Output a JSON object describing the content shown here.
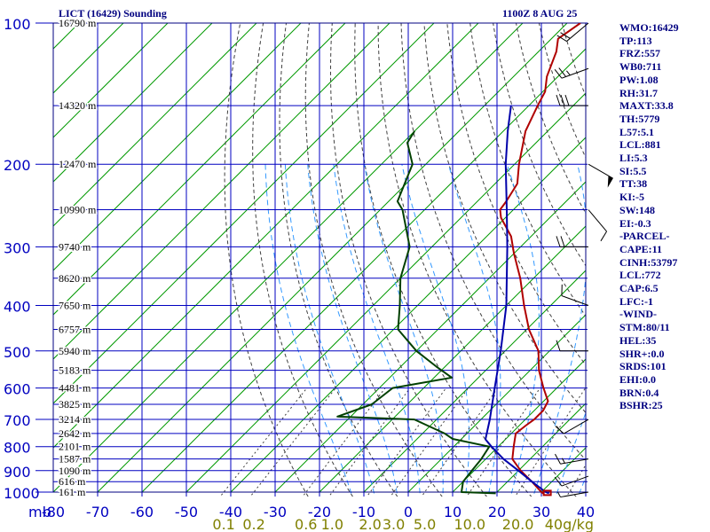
{
  "title_station": "LICT (16429) Sounding",
  "title_time": "1100Z  8 AUG 25",
  "stats": [
    "WMO:16429",
    "TP:113",
    "FRZ:557",
    "WB0:711",
    "PW:1.08",
    "RH:31.7",
    "MAXT:33.8",
    "TH:5779",
    "L57:5.1",
    "LCL:881",
    "LI:5.3",
    "SI:5.5",
    "TT:38",
    "KI:-5",
    "SW:148",
    "EI:-0.3",
    "-PARCEL-",
    "CAPE:11",
    "CINH:53797",
    "LCL:772",
    "CAP:6.5",
    "LFC:-1",
    "-WIND-",
    "STM:80/11",
    "HEL:35",
    "SHR+:0.0",
    "SRDS:101",
    "EHI:0.0",
    "BRN:0.4",
    "BSHR:25"
  ],
  "colors": {
    "frame": "#000080",
    "isobar": "#0000c0",
    "isotherm": "#009900",
    "dry_adiabat": "#404040",
    "moist_adiabat": "#3399ff",
    "temperature": "#b00000",
    "dewpoint": "#004000",
    "parcel": "#0000aa",
    "mixing_label": "#808000"
  },
  "chart_data": {
    "type": "line",
    "title": "LICT (16429) Sounding",
    "x_unit": "°C",
    "y_unit": "mb",
    "y_scale": "log",
    "xlim": [
      -80,
      40
    ],
    "ylim": [
      1000,
      100
    ],
    "pressure_ticks": [
      100,
      200,
      300,
      400,
      500,
      600,
      700,
      800,
      900,
      1000
    ],
    "temperature_ticks": [
      -80,
      -70,
      -60,
      -50,
      -40,
      -30,
      -20,
      -10,
      0,
      10,
      20,
      30,
      40
    ],
    "height_labels": [
      {
        "p": 100,
        "label": "16790 m"
      },
      {
        "p": 150,
        "label": "14320 m"
      },
      {
        "p": 200,
        "label": "12470 m"
      },
      {
        "p": 250,
        "label": "10990 m"
      },
      {
        "p": 300,
        "label": "9740 m"
      },
      {
        "p": 350,
        "label": "8620 m"
      },
      {
        "p": 400,
        "label": "7650 m"
      },
      {
        "p": 450,
        "label": "6757 m"
      },
      {
        "p": 500,
        "label": "5940 m"
      },
      {
        "p": 550,
        "label": "5183 m"
      },
      {
        "p": 600,
        "label": "4481 m"
      },
      {
        "p": 650,
        "label": "3825 m"
      },
      {
        "p": 700,
        "label": "3214 m"
      },
      {
        "p": 750,
        "label": "2642 m"
      },
      {
        "p": 800,
        "label": "2101 m"
      },
      {
        "p": 850,
        "label": "1587 m"
      },
      {
        "p": 900,
        "label": "1090 m"
      },
      {
        "p": 950,
        "label": "616 m"
      },
      {
        "p": 1000,
        "label": "161 m"
      }
    ],
    "mixing_ratio_labels": [
      {
        "w": 0.1,
        "label": "0.1"
      },
      {
        "w": 0.2,
        "label": "0.2"
      },
      {
        "w": 0.6,
        "label": "0.6"
      },
      {
        "w": 1.0,
        "label": "1.0"
      },
      {
        "w": 2.0,
        "label": "2.0"
      },
      {
        "w": 3.0,
        "label": "3.0"
      },
      {
        "w": 5.0,
        "label": "5.0"
      },
      {
        "w": 10.0,
        "label": "10.0"
      },
      {
        "w": 20.0,
        "label": "20.0"
      },
      {
        "w": 40.0,
        "label": "40g/kg"
      }
    ],
    "series": [
      {
        "key": "temperature",
        "points": [
          [
            1006,
            30.7
          ],
          [
            1000,
            30.0
          ],
          [
            950,
            25.5
          ],
          [
            900,
            20.5
          ],
          [
            850,
            16.0
          ],
          [
            800,
            13.5
          ],
          [
            750,
            11.0
          ],
          [
            720,
            11.5
          ],
          [
            700,
            12.0
          ],
          [
            670,
            12.0
          ],
          [
            640,
            11.0
          ],
          [
            600,
            7.0
          ],
          [
            550,
            2.0
          ],
          [
            500,
            -2.5
          ],
          [
            450,
            -9.5
          ],
          [
            400,
            -16.0
          ],
          [
            350,
            -23.0
          ],
          [
            310,
            -30.0
          ],
          [
            285,
            -34.5
          ],
          [
            260,
            -41.0
          ],
          [
            250,
            -43.0
          ],
          [
            240,
            -43.5
          ],
          [
            220,
            -45.0
          ],
          [
            200,
            -49.0
          ],
          [
            170,
            -55.0
          ],
          [
            150,
            -58.0
          ],
          [
            140,
            -59.5
          ],
          [
            130,
            -62.5
          ],
          [
            115,
            -66.0
          ],
          [
            108,
            -68.5
          ],
          [
            100,
            -67.0
          ]
        ]
      },
      {
        "key": "dewpoint",
        "points": [
          [
            1006,
            20.0
          ],
          [
            1000,
            12.0
          ],
          [
            950,
            10.0
          ],
          [
            900,
            9.5
          ],
          [
            850,
            9.0
          ],
          [
            800,
            8.0
          ],
          [
            770,
            -2.0
          ],
          [
            750,
            -5.0
          ],
          [
            700,
            -15.0
          ],
          [
            690,
            -33.0
          ],
          [
            650,
            -28.0
          ],
          [
            600,
            -27.0
          ],
          [
            570,
            -16.0
          ],
          [
            540,
            -22.0
          ],
          [
            500,
            -30.0
          ],
          [
            450,
            -39.0
          ],
          [
            400,
            -44.0
          ],
          [
            350,
            -50.0
          ],
          [
            300,
            -55.0
          ],
          [
            250,
            -65.0
          ],
          [
            240,
            -68.0
          ],
          [
            200,
            -73.0
          ],
          [
            180,
            -79.0
          ],
          [
            170,
            -80.0
          ]
        ]
      },
      {
        "key": "parcel",
        "points": [
          [
            1006,
            32.0
          ],
          [
            1000,
            31.0
          ],
          [
            950,
            25.5
          ],
          [
            900,
            20.0
          ],
          [
            850,
            14.0
          ],
          [
            800,
            8.5
          ],
          [
            772,
            5.5
          ],
          [
            700,
            2.0
          ],
          [
            600,
            -4.0
          ],
          [
            500,
            -11.0
          ],
          [
            400,
            -20.0
          ],
          [
            300,
            -33.0
          ],
          [
            250,
            -41.5
          ],
          [
            200,
            -52.0
          ],
          [
            170,
            -59.0
          ],
          [
            150,
            -64.0
          ]
        ]
      }
    ],
    "wind_barbs": [
      {
        "p": 1000,
        "dir": 80,
        "spd": 5
      },
      {
        "p": 925,
        "dir": 70,
        "spd": 10
      },
      {
        "p": 850,
        "dir": 80,
        "spd": 15
      },
      {
        "p": 700,
        "dir": 60,
        "spd": 10
      },
      {
        "p": 500,
        "dir": 90,
        "spd": 10
      },
      {
        "p": 400,
        "dir": 110,
        "spd": 10
      },
      {
        "p": 300,
        "dir": 90,
        "spd": 20
      },
      {
        "p": 250,
        "dir": 320,
        "spd": 10
      },
      {
        "p": 200,
        "dir": 300,
        "spd": 50
      },
      {
        "p": 150,
        "dir": 90,
        "spd": 30
      },
      {
        "p": 125,
        "dir": 70,
        "spd": 25
      },
      {
        "p": 100,
        "dir": 50,
        "spd": 20
      }
    ]
  }
}
